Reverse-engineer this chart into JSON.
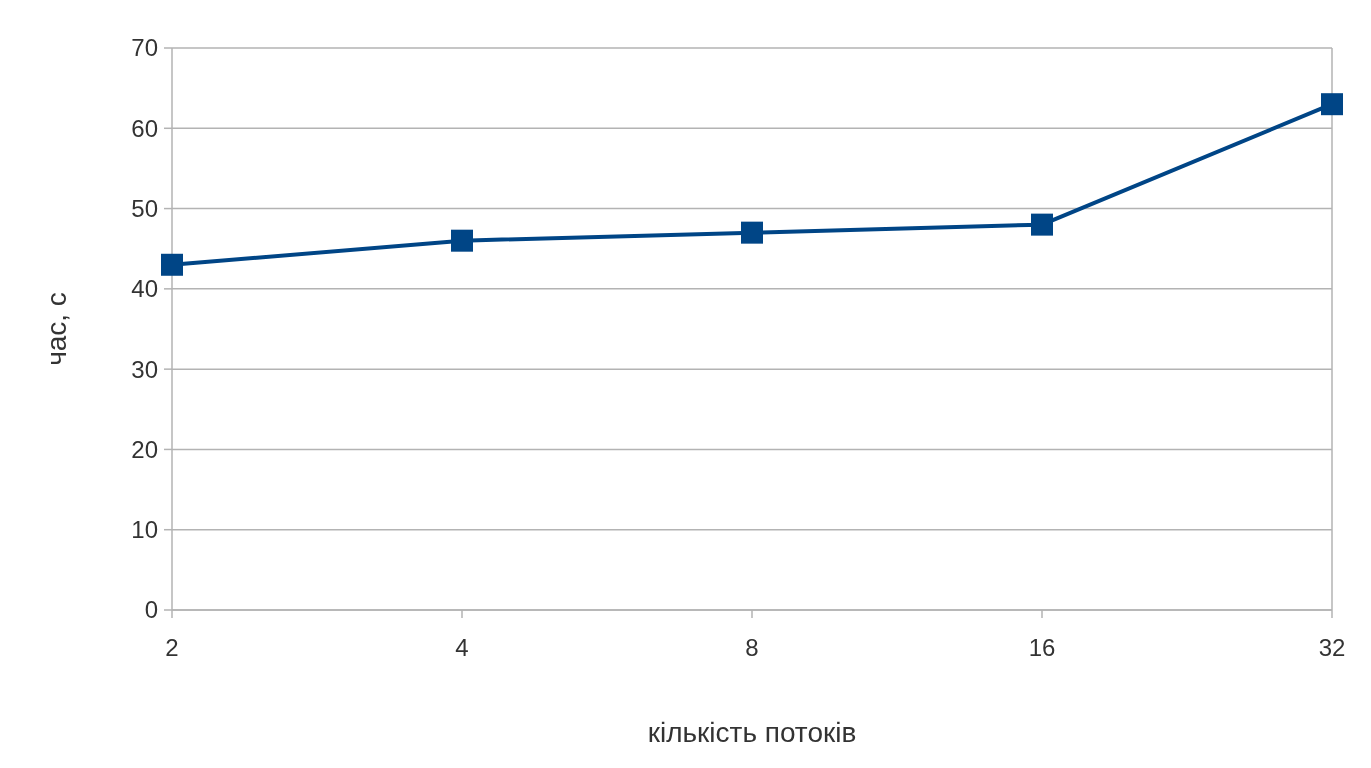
{
  "chart_data": {
    "type": "line",
    "xlabel": "кількість потоків",
    "ylabel": "час, с",
    "categories": [
      "2",
      "4",
      "8",
      "16",
      "32"
    ],
    "series": [
      {
        "color": "#004586",
        "values": [
          43,
          46,
          47,
          48,
          63
        ]
      }
    ],
    "ylim": [
      0,
      70
    ],
    "yticks": [
      0,
      10,
      20,
      30,
      40,
      50,
      60,
      70
    ],
    "grid": "y",
    "marker": "square",
    "line_style": "solid"
  }
}
